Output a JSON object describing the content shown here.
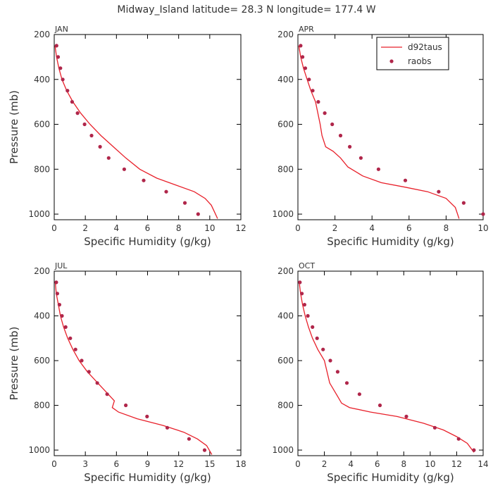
{
  "figure": {
    "title": "Midway_Island  latitude= 28.3 N longitude= 177.4 W"
  },
  "colors": {
    "model": "#e8202a",
    "obs": "#b0264a",
    "axis": "#000000",
    "text": "#333333"
  },
  "legend": {
    "entries": [
      "d92taus",
      "raobs"
    ],
    "placement": "top-right of APR panel"
  },
  "chart_data": [
    {
      "type": "line",
      "panel": "JAN",
      "xlabel": "Specific Humidity (g/kg)",
      "ylabel": "Pressure (mb)",
      "xlim": [
        0,
        12
      ],
      "ylim": [
        200,
        1025
      ],
      "x_ticks": [
        0,
        2,
        4,
        6,
        8,
        10,
        12
      ],
      "y_ticks": [
        200,
        400,
        600,
        800,
        1000
      ],
      "series": [
        {
          "name": "d92taus",
          "kind": "line",
          "x": [
            0.05,
            0.15,
            0.3,
            0.5,
            0.8,
            1.2,
            1.7,
            2.3,
            3.0,
            3.8,
            4.6,
            5.5,
            6.6,
            7.8,
            9.0,
            9.7,
            10.1,
            10.3,
            10.5
          ],
          "y": [
            250,
            300,
            350,
            400,
            450,
            500,
            550,
            600,
            650,
            700,
            750,
            800,
            840,
            870,
            900,
            930,
            960,
            990,
            1020
          ]
        },
        {
          "name": "raobs",
          "kind": "scatter",
          "x": [
            0.15,
            0.25,
            0.4,
            0.55,
            0.85,
            1.15,
            1.5,
            1.95,
            2.4,
            2.95,
            3.5,
            4.5,
            5.75,
            7.2,
            8.4,
            9.25
          ],
          "y": [
            250,
            300,
            350,
            400,
            450,
            500,
            550,
            600,
            650,
            700,
            750,
            800,
            850,
            900,
            950,
            1000
          ]
        }
      ]
    },
    {
      "type": "line",
      "panel": "APR",
      "xlabel": "Specific Humidity (g/kg)",
      "ylabel": "",
      "xlim": [
        0,
        10
      ],
      "ylim": [
        200,
        1025
      ],
      "x_ticks": [
        0,
        2,
        4,
        6,
        8,
        10
      ],
      "y_ticks": [
        200,
        400,
        600,
        800,
        1000
      ],
      "series": [
        {
          "name": "d92taus",
          "kind": "line",
          "x": [
            0.05,
            0.15,
            0.3,
            0.5,
            0.7,
            0.95,
            1.2,
            1.3,
            1.5,
            1.9,
            2.3,
            2.7,
            3.5,
            4.5,
            5.8,
            7.0,
            8.0,
            8.5,
            8.7
          ],
          "y": [
            250,
            300,
            350,
            400,
            450,
            500,
            600,
            650,
            700,
            720,
            750,
            790,
            830,
            860,
            880,
            900,
            930,
            970,
            1020
          ]
        },
        {
          "name": "raobs",
          "kind": "scatter",
          "x": [
            0.15,
            0.25,
            0.4,
            0.6,
            0.8,
            1.1,
            1.45,
            1.85,
            2.3,
            2.8,
            3.4,
            4.35,
            5.8,
            7.6,
            8.95,
            10.0
          ],
          "y": [
            250,
            300,
            350,
            400,
            450,
            500,
            550,
            600,
            650,
            700,
            750,
            800,
            850,
            900,
            950,
            1000
          ]
        }
      ]
    },
    {
      "type": "line",
      "panel": "JUL",
      "xlabel": "Specific Humidity (g/kg)",
      "ylabel": "Pressure (mb)",
      "xlim": [
        0,
        18
      ],
      "ylim": [
        200,
        1025
      ],
      "x_ticks": [
        0,
        3,
        6,
        9,
        12,
        15,
        18
      ],
      "y_ticks": [
        200,
        400,
        600,
        800,
        1000
      ],
      "series": [
        {
          "name": "d92taus",
          "kind": "line",
          "x": [
            0.1,
            0.2,
            0.4,
            0.6,
            0.9,
            1.3,
            1.8,
            2.4,
            3.2,
            4.2,
            5.2,
            5.8,
            5.6,
            6.2,
            8.0,
            10.5,
            12.5,
            13.8,
            14.7,
            15.2
          ],
          "y": [
            250,
            300,
            350,
            400,
            450,
            500,
            550,
            600,
            650,
            700,
            750,
            780,
            810,
            830,
            860,
            890,
            920,
            950,
            980,
            1020
          ]
        },
        {
          "name": "raobs",
          "kind": "scatter",
          "x": [
            0.2,
            0.3,
            0.5,
            0.75,
            1.1,
            1.55,
            2.05,
            2.65,
            3.35,
            4.15,
            5.1,
            6.9,
            8.95,
            10.9,
            13.0,
            14.5
          ],
          "y": [
            250,
            300,
            350,
            400,
            450,
            500,
            550,
            600,
            650,
            700,
            750,
            800,
            850,
            900,
            950,
            1000
          ]
        }
      ]
    },
    {
      "type": "line",
      "panel": "OCT",
      "xlabel": "Specific Humidity (g/kg)",
      "ylabel": "",
      "xlim": [
        0,
        14
      ],
      "ylim": [
        200,
        1025
      ],
      "x_ticks": [
        0,
        2,
        4,
        6,
        8,
        10,
        12,
        14
      ],
      "y_ticks": [
        200,
        400,
        600,
        800,
        1000
      ],
      "series": [
        {
          "name": "d92taus",
          "kind": "line",
          "x": [
            0.1,
            0.2,
            0.35,
            0.55,
            0.8,
            1.1,
            1.5,
            2.0,
            2.4,
            3.0,
            3.3,
            3.9,
            5.5,
            7.5,
            9.5,
            11.0,
            12.0,
            12.8,
            13.3
          ],
          "y": [
            250,
            300,
            350,
            400,
            450,
            500,
            550,
            600,
            700,
            760,
            790,
            810,
            830,
            850,
            880,
            910,
            940,
            970,
            1010
          ]
        },
        {
          "name": "raobs",
          "kind": "scatter",
          "x": [
            0.15,
            0.3,
            0.5,
            0.75,
            1.1,
            1.45,
            1.9,
            2.45,
            3.0,
            3.7,
            4.65,
            6.2,
            8.2,
            10.35,
            12.15,
            13.3
          ],
          "y": [
            250,
            300,
            350,
            400,
            450,
            500,
            550,
            600,
            650,
            700,
            750,
            800,
            850,
            900,
            950,
            1000
          ]
        }
      ]
    }
  ]
}
